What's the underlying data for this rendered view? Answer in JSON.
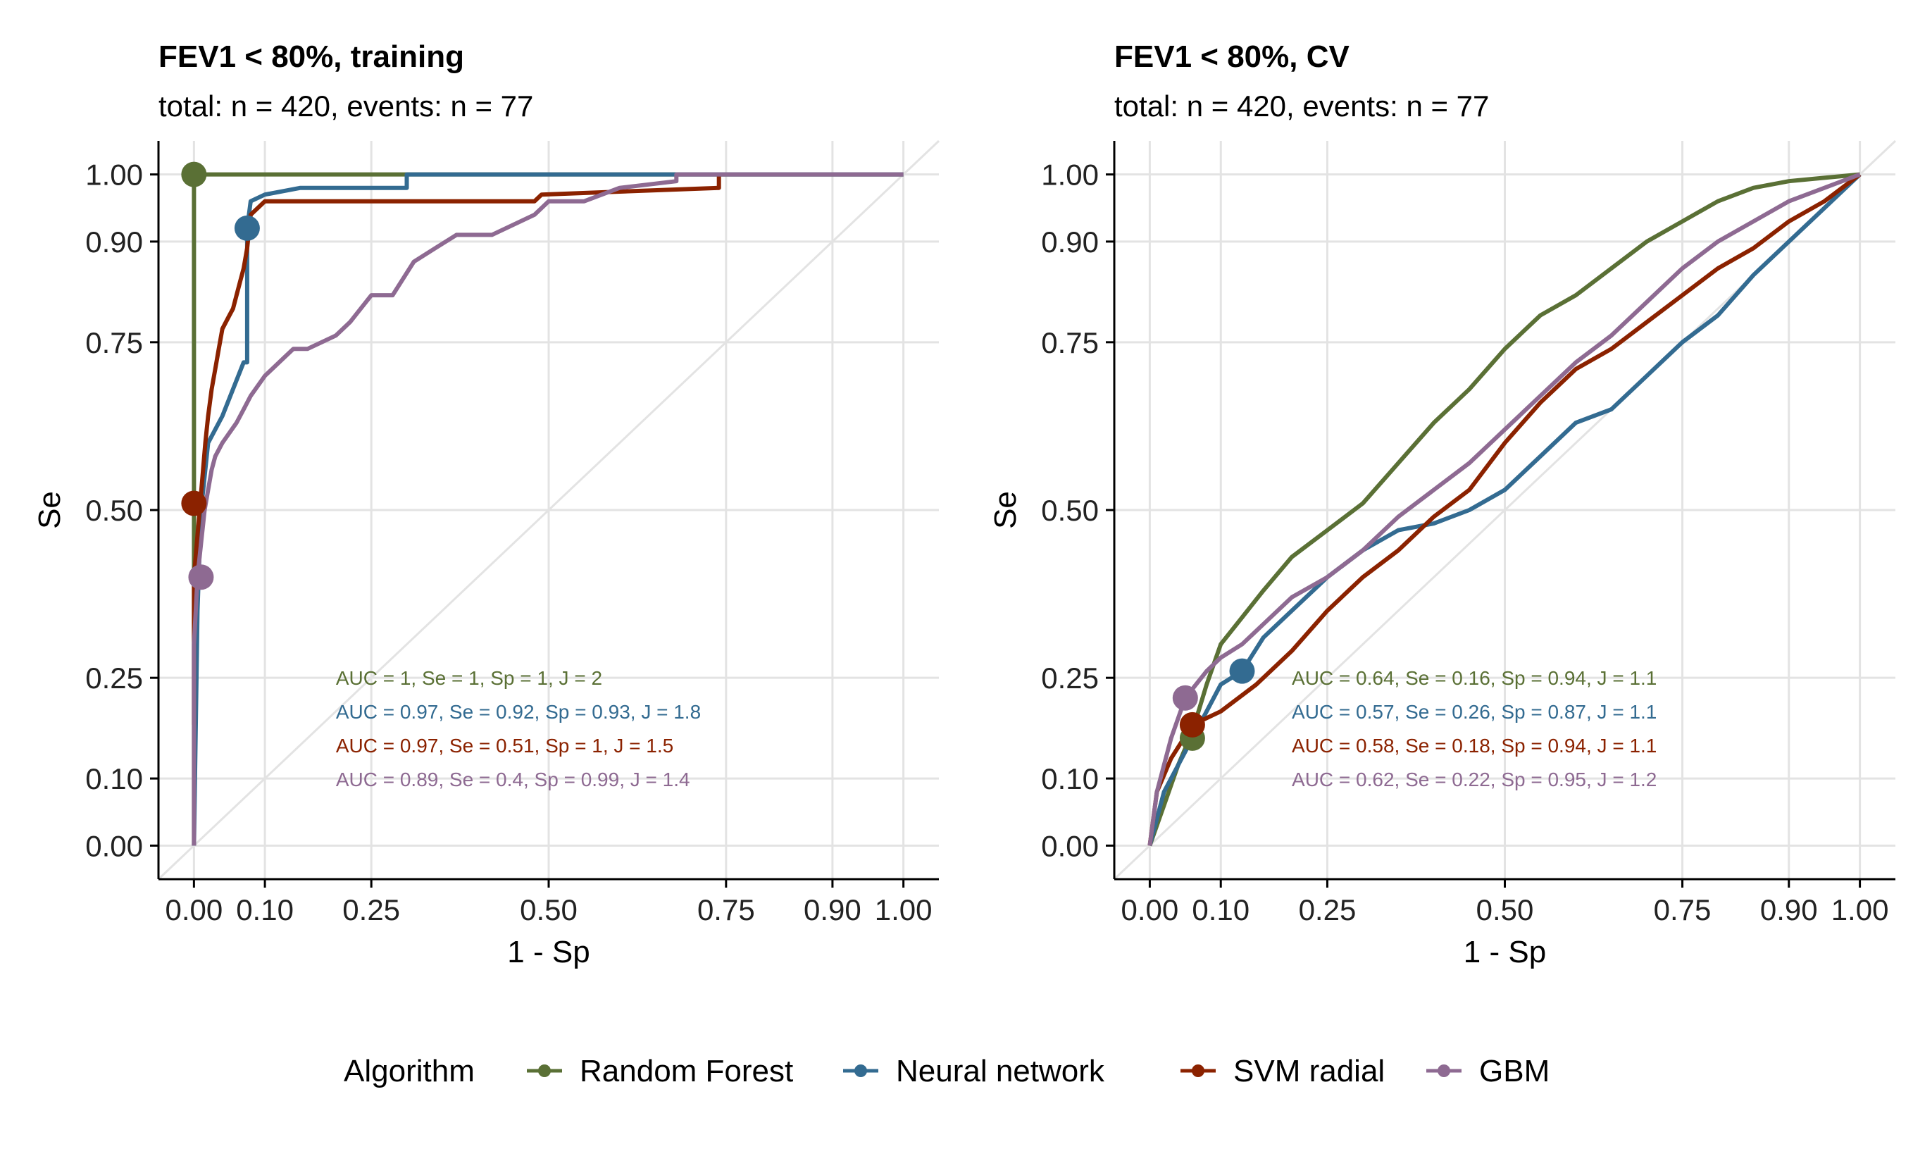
{
  "colors": {
    "random_forest": "#5A7035",
    "neural_network": "#336B91",
    "svm_radial": "#8B2200",
    "gbm": "#8E6A92",
    "grid": "#E3E3E3",
    "axis": "#000000"
  },
  "legend": {
    "title": "Algorithm",
    "items": [
      {
        "label": "Random Forest",
        "color_key": "random_forest"
      },
      {
        "label": "Neural network",
        "color_key": "neural_network"
      },
      {
        "label": "SVM radial",
        "color_key": "svm_radial"
      },
      {
        "label": "GBM",
        "color_key": "gbm"
      }
    ]
  },
  "chart_data": [
    {
      "type": "line",
      "title": "FEV1 < 80%, training",
      "subtitle": "total: n = 420, events: n = 77",
      "xlabel": "1 - Sp",
      "ylabel": "Se",
      "xlim": [
        -0.05,
        1.05
      ],
      "ylim": [
        -0.05,
        1.05
      ],
      "xticks": [
        0.0,
        0.1,
        0.25,
        0.5,
        0.75,
        0.9,
        1.0
      ],
      "yticks": [
        0.0,
        0.1,
        0.25,
        0.5,
        0.75,
        0.9,
        1.0
      ],
      "xtick_labels": [
        "0.00",
        "0.10",
        "0.25",
        "0.50",
        "0.75",
        "0.90",
        "1.00"
      ],
      "ytick_labels": [
        "0.00",
        "0.10",
        "0.25",
        "0.50",
        "0.75",
        "0.90",
        "1.00"
      ],
      "grid": true,
      "diagonal": true,
      "series": [
        {
          "name": "Random Forest",
          "color_key": "random_forest",
          "x": [
            0,
            0,
            0,
            0,
            0,
            0.29,
            1.0
          ],
          "y": [
            0,
            0.2,
            0.5,
            0.6,
            1.0,
            1.0,
            1.0
          ],
          "point": [
            0.0,
            1.0
          ],
          "annotation": "AUC = 1, Se = 1, Sp = 1, J = 2"
        },
        {
          "name": "Neural network",
          "color_key": "neural_network",
          "x": [
            0,
            0.005,
            0.01,
            0.015,
            0.02,
            0.04,
            0.07,
            0.075,
            0.075,
            0.08,
            0.1,
            0.15,
            0.3,
            0.3,
            0.68,
            0.68,
            1.0
          ],
          "y": [
            0,
            0.35,
            0.5,
            0.55,
            0.6,
            0.64,
            0.72,
            0.72,
            0.92,
            0.96,
            0.97,
            0.98,
            0.98,
            1.0,
            1.0,
            1.0,
            1.0
          ],
          "point": [
            0.075,
            0.92
          ],
          "annotation": "AUC = 0.97, Se = 0.92, Sp = 0.93, J = 1.8"
        },
        {
          "name": "SVM radial",
          "color_key": "svm_radial",
          "x": [
            0,
            0,
            0.004,
            0.008,
            0.012,
            0.016,
            0.02,
            0.025,
            0.03,
            0.035,
            0.04,
            0.05,
            0.055,
            0.06,
            0.065,
            0.07,
            0.075,
            0.08,
            0.1,
            0.2,
            0.3,
            0.48,
            0.49,
            0.74,
            0.74
          ],
          "y": [
            0.18,
            0.4,
            0.45,
            0.5,
            0.55,
            0.6,
            0.64,
            0.68,
            0.71,
            0.74,
            0.77,
            0.79,
            0.8,
            0.82,
            0.84,
            0.86,
            0.89,
            0.94,
            0.96,
            0.96,
            0.96,
            0.96,
            0.97,
            0.98,
            1.0
          ],
          "point": [
            0.0,
            0.51
          ],
          "annotation": "AUC = 0.97, Se = 0.51, Sp = 1, J = 1.5"
        },
        {
          "name": "GBM",
          "color_key": "gbm",
          "x": [
            0,
            0,
            0.005,
            0.01,
            0.015,
            0.02,
            0.025,
            0.03,
            0.04,
            0.06,
            0.07,
            0.08,
            0.1,
            0.12,
            0.14,
            0.16,
            0.2,
            0.22,
            0.25,
            0.28,
            0.31,
            0.34,
            0.37,
            0.42,
            0.48,
            0.5,
            0.55,
            0.6,
            0.68,
            0.68,
            1.0
          ],
          "y": [
            0,
            0.3,
            0.4,
            0.45,
            0.5,
            0.53,
            0.56,
            0.58,
            0.6,
            0.63,
            0.65,
            0.67,
            0.7,
            0.72,
            0.74,
            0.74,
            0.76,
            0.78,
            0.82,
            0.82,
            0.87,
            0.89,
            0.91,
            0.91,
            0.94,
            0.96,
            0.96,
            0.98,
            0.99,
            1.0,
            1.0
          ],
          "point": [
            0.01,
            0.4
          ],
          "annotation": "AUC = 0.89, Se = 0.4, Sp = 0.99, J = 1.4"
        }
      ]
    },
    {
      "type": "line",
      "title": "FEV1 < 80%, CV",
      "subtitle": "total: n = 420, events: n = 77",
      "xlabel": "1 - Sp",
      "ylabel": "Se",
      "xlim": [
        -0.05,
        1.05
      ],
      "ylim": [
        -0.05,
        1.05
      ],
      "xticks": [
        0.0,
        0.1,
        0.25,
        0.5,
        0.75,
        0.9,
        1.0
      ],
      "yticks": [
        0.0,
        0.1,
        0.25,
        0.5,
        0.75,
        0.9,
        1.0
      ],
      "xtick_labels": [
        "0.00",
        "0.10",
        "0.25",
        "0.50",
        "0.75",
        "0.90",
        "1.00"
      ],
      "ytick_labels": [
        "0.00",
        "0.10",
        "0.25",
        "0.50",
        "0.75",
        "0.90",
        "1.00"
      ],
      "grid": true,
      "diagonal": true,
      "series": [
        {
          "name": "Random Forest",
          "color_key": "random_forest",
          "x": [
            0,
            0.02,
            0.04,
            0.06,
            0.08,
            0.1,
            0.13,
            0.16,
            0.2,
            0.25,
            0.3,
            0.35,
            0.4,
            0.45,
            0.5,
            0.55,
            0.6,
            0.65,
            0.7,
            0.75,
            0.8,
            0.85,
            0.9,
            0.95,
            1.0
          ],
          "y": [
            0,
            0.06,
            0.12,
            0.17,
            0.24,
            0.3,
            0.34,
            0.38,
            0.43,
            0.47,
            0.51,
            0.57,
            0.63,
            0.68,
            0.74,
            0.79,
            0.82,
            0.86,
            0.9,
            0.93,
            0.96,
            0.98,
            0.99,
            0.995,
            1.0
          ],
          "point": [
            0.06,
            0.16
          ],
          "annotation": "AUC = 0.64, Se = 0.16, Sp = 0.94, J = 1.1"
        },
        {
          "name": "Neural network",
          "color_key": "neural_network",
          "x": [
            0,
            0.02,
            0.05,
            0.08,
            0.1,
            0.13,
            0.16,
            0.2,
            0.25,
            0.3,
            0.35,
            0.4,
            0.45,
            0.5,
            0.55,
            0.6,
            0.65,
            0.7,
            0.75,
            0.8,
            0.85,
            0.9,
            0.95,
            1.0
          ],
          "y": [
            0,
            0.08,
            0.14,
            0.2,
            0.24,
            0.26,
            0.31,
            0.35,
            0.4,
            0.44,
            0.47,
            0.48,
            0.5,
            0.53,
            0.58,
            0.63,
            0.65,
            0.7,
            0.75,
            0.79,
            0.85,
            0.9,
            0.95,
            1.0
          ],
          "point": [
            0.13,
            0.26
          ],
          "annotation": "AUC = 0.57, Se = 0.26, Sp = 0.87, J = 1.1"
        },
        {
          "name": "SVM radial",
          "color_key": "svm_radial",
          "x": [
            0,
            0.01,
            0.03,
            0.06,
            0.1,
            0.15,
            0.2,
            0.25,
            0.3,
            0.35,
            0.4,
            0.45,
            0.5,
            0.55,
            0.6,
            0.65,
            0.7,
            0.75,
            0.8,
            0.85,
            0.9,
            0.95,
            1.0
          ],
          "y": [
            0,
            0.08,
            0.13,
            0.18,
            0.2,
            0.24,
            0.29,
            0.35,
            0.4,
            0.44,
            0.49,
            0.53,
            0.6,
            0.66,
            0.71,
            0.74,
            0.78,
            0.82,
            0.86,
            0.89,
            0.93,
            0.96,
            1.0
          ],
          "point": [
            0.06,
            0.18
          ],
          "annotation": "AUC = 0.58, Se = 0.18, Sp = 0.94, J = 1.1"
        },
        {
          "name": "GBM",
          "color_key": "gbm",
          "x": [
            0,
            0.01,
            0.03,
            0.05,
            0.08,
            0.1,
            0.13,
            0.16,
            0.2,
            0.25,
            0.3,
            0.35,
            0.4,
            0.45,
            0.5,
            0.55,
            0.6,
            0.65,
            0.7,
            0.75,
            0.8,
            0.85,
            0.9,
            0.95,
            1.0
          ],
          "y": [
            0,
            0.08,
            0.16,
            0.22,
            0.26,
            0.28,
            0.3,
            0.33,
            0.37,
            0.4,
            0.44,
            0.49,
            0.53,
            0.57,
            0.62,
            0.67,
            0.72,
            0.76,
            0.81,
            0.86,
            0.9,
            0.93,
            0.96,
            0.98,
            1.0
          ],
          "point": [
            0.05,
            0.22
          ],
          "annotation": "AUC = 0.62, Se = 0.22, Sp = 0.95, J = 1.2"
        }
      ]
    }
  ]
}
